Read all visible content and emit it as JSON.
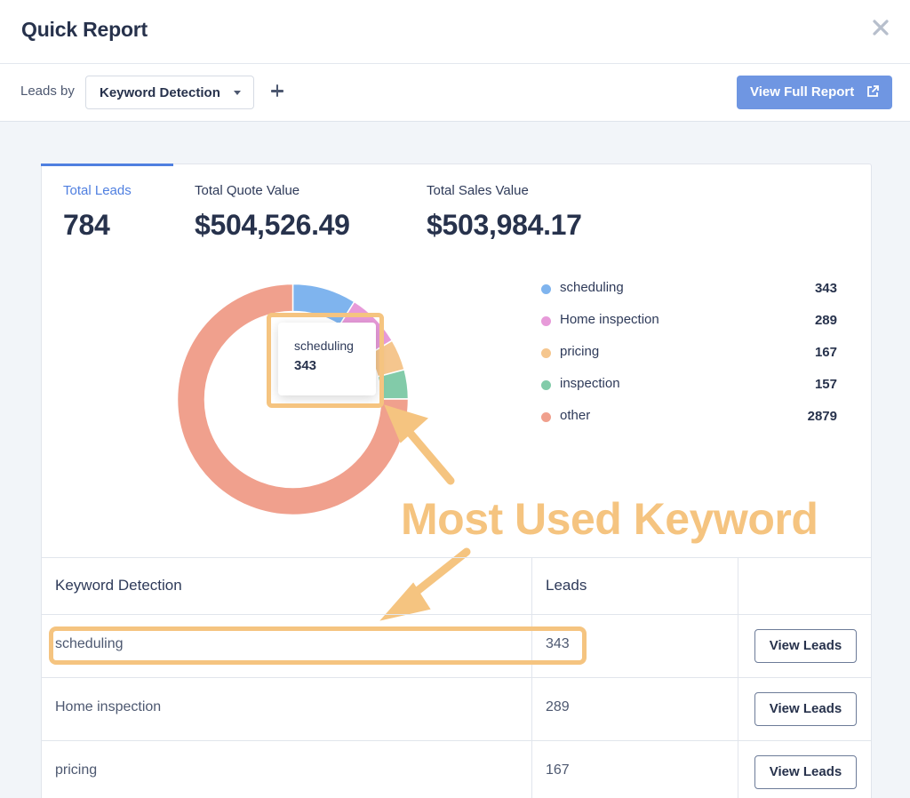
{
  "header": {
    "title": "Quick Report"
  },
  "toolbar": {
    "leads_by_label": "Leads by",
    "dropdown_value": "Keyword Detection",
    "full_report_label": "View Full Report"
  },
  "stats": {
    "total_leads_label": "Total Leads",
    "total_leads_value": "784",
    "quote_label": "Total Quote Value",
    "quote_value": "$504,526.49",
    "sales_label": "Total Sales Value",
    "sales_value": "$503,984.17"
  },
  "chart_data": {
    "type": "pie",
    "categories": [
      "scheduling",
      "Home inspection",
      "pricing",
      "inspection",
      "other"
    ],
    "values": [
      343,
      289,
      167,
      157,
      2879
    ],
    "colors": [
      "#7fb4ee",
      "#e79ad9",
      "#f5c68e",
      "#82cba9",
      "#f0a08d"
    ],
    "tooltip": {
      "label": "scheduling",
      "value": "343"
    }
  },
  "legend": {
    "items": [
      {
        "label": "scheduling",
        "value": "343"
      },
      {
        "label": "Home inspection",
        "value": "289"
      },
      {
        "label": "pricing",
        "value": "167"
      },
      {
        "label": "inspection",
        "value": "157"
      },
      {
        "label": "other",
        "value": "2879"
      }
    ]
  },
  "annotation": {
    "callout": "Most Used Keyword"
  },
  "table": {
    "headers": {
      "keyword": "Keyword Detection",
      "leads": "Leads"
    },
    "rows": [
      {
        "keyword": "scheduling",
        "leads": "343",
        "action": "View Leads"
      },
      {
        "keyword": "Home inspection",
        "leads": "289",
        "action": "View Leads"
      },
      {
        "keyword": "pricing",
        "leads": "167",
        "action": "View Leads"
      }
    ]
  },
  "colors": {
    "accent": "#4f7fe0",
    "button": "#6f96e2",
    "highlight": "#f5c480"
  }
}
